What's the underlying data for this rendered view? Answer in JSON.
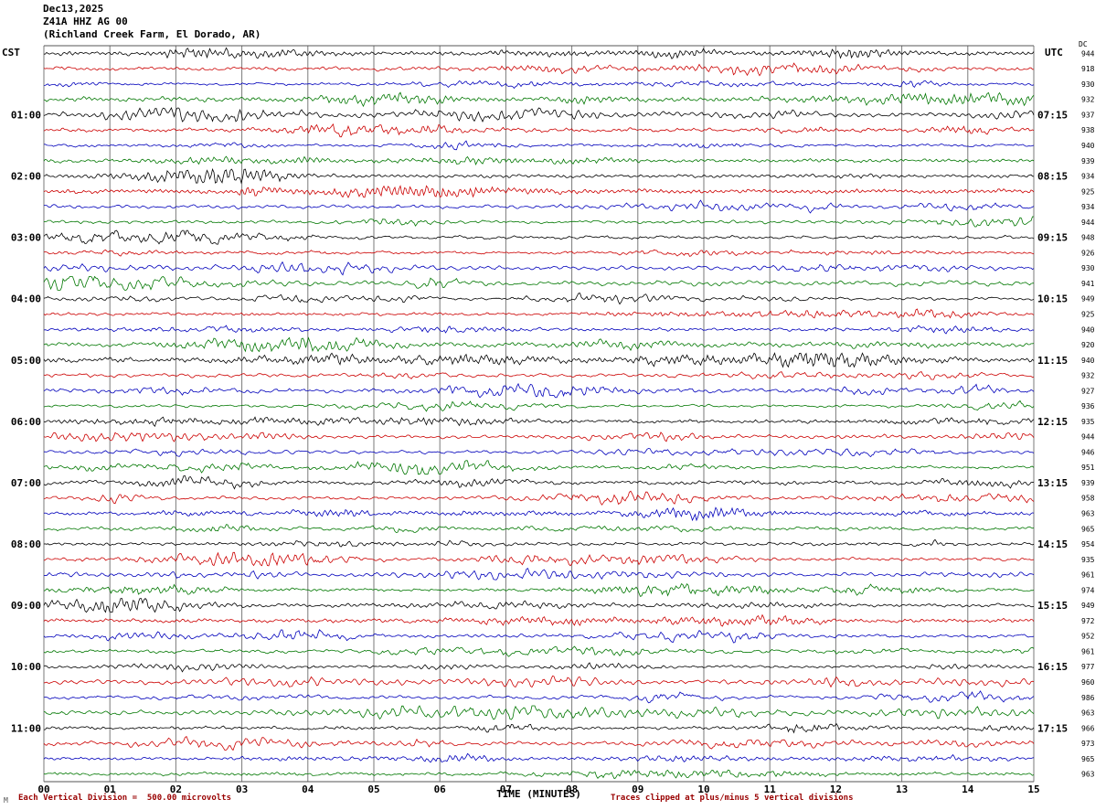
{
  "header": {
    "date": "Dec13,2025",
    "station": "Z41A HHZ AG 00",
    "location": "(Richland Creek Farm, El Dorado, AR)"
  },
  "axis": {
    "left": "CST",
    "right": "UTC",
    "dc": "DC"
  },
  "footer": {
    "left": "Each Vertical Division =  500.00 microvolts",
    "center": "TIME (MINUTES)",
    "right": "Traces clipped at plus/minus 5 vertical divisions",
    "mark": "M"
  },
  "chart_data": {
    "type": "line",
    "subtype": "seismogram-helicorder",
    "title": "Z41A HHZ AG 00 (Richland Creek Farm, El Dorado, AR)",
    "date": "Dec13,2025",
    "xlabel": "TIME (MINUTES)",
    "minutes_per_line": 15,
    "lines": 48,
    "lines_per_hour": 4,
    "vertical_division_microvolts": 500.0,
    "clip_note": "Traces clipped at plus/minus 5 vertical divisions",
    "trace_colors": [
      "#000000",
      "#cc0000",
      "#0000bb",
      "#007700"
    ],
    "left_hour_labels": [
      "01:00",
      "02:00",
      "03:00",
      "04:00",
      "05:00",
      "06:00",
      "07:00",
      "08:00",
      "09:00",
      "10:00",
      "11:00"
    ],
    "right_hour_labels": [
      "07:15",
      "08:15",
      "09:15",
      "10:15",
      "11:15",
      "12:15",
      "13:15",
      "14:15",
      "15:15",
      "16:15",
      "17:15"
    ],
    "minute_ticks": [
      "00",
      "01",
      "02",
      "03",
      "04",
      "05",
      "06",
      "07",
      "08",
      "09",
      "10",
      "11",
      "12",
      "13",
      "14",
      "15"
    ],
    "dc_values": [
      944,
      918,
      930,
      932,
      937,
      938,
      940,
      939,
      934,
      925,
      934,
      944,
      948,
      926,
      930,
      941,
      949,
      925,
      940,
      920,
      940,
      932,
      927,
      936,
      935,
      944,
      946,
      951,
      939,
      958,
      963,
      965,
      954,
      935,
      961,
      974,
      949,
      972,
      952,
      961,
      977,
      960,
      986,
      963,
      966,
      973,
      965,
      963
    ],
    "content_note": "Continuous ambient seismic noise; no labeled events"
  }
}
